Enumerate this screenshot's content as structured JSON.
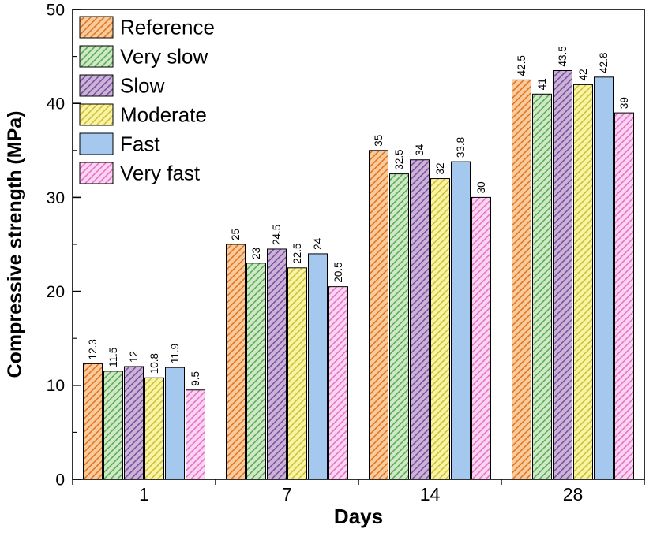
{
  "chart_data": {
    "type": "bar",
    "title": "",
    "xlabel": "Days",
    "ylabel": "Compressive strength (MPa)",
    "categories": [
      "1",
      "7",
      "14",
      "28"
    ],
    "ylim": [
      0,
      50
    ],
    "y_major_step": 10,
    "y_minor_step": 5,
    "grid": false,
    "legend_position": "top-left-inside",
    "series": [
      {
        "name": "Reference",
        "values": [
          12.3,
          25,
          35,
          42.5
        ],
        "fill": "#F8CB9C",
        "hatch": "#E2701C"
      },
      {
        "name": "Very slow",
        "values": [
          11.5,
          23,
          32.5,
          41
        ],
        "fill": "#CFE9C6",
        "hatch": "#55A953"
      },
      {
        "name": "Slow",
        "values": [
          12,
          24.5,
          34,
          43.5
        ],
        "fill": "#CDB2D6",
        "hatch": "#6F4FA0"
      },
      {
        "name": "Moderate",
        "values": [
          10.8,
          22.5,
          32,
          42
        ],
        "fill": "#F9F3A2",
        "hatch": "#C9BE37"
      },
      {
        "name": "Fast",
        "values": [
          11.9,
          24,
          33.8,
          42.8
        ],
        "fill": "#A5C8EF",
        "hatch": null
      },
      {
        "name": "Very fast",
        "values": [
          9.5,
          20.5,
          30,
          39
        ],
        "fill": "#FBD4F0",
        "hatch": "#E36EC9"
      }
    ],
    "bar_value_labels": [
      [
        "12.3",
        "11.5",
        "12",
        "10.8",
        "11.9",
        "9.5"
      ],
      [
        "25",
        "23",
        "24.5",
        "22.5",
        "24",
        "20.5"
      ],
      [
        "35",
        "32.5",
        "34",
        "32",
        "33.8",
        "30"
      ],
      [
        "42.5",
        "41",
        "43.5",
        "42",
        "42.8",
        "39"
      ]
    ],
    "axis_color": "#000000",
    "bar_outline_color": "#000000"
  }
}
